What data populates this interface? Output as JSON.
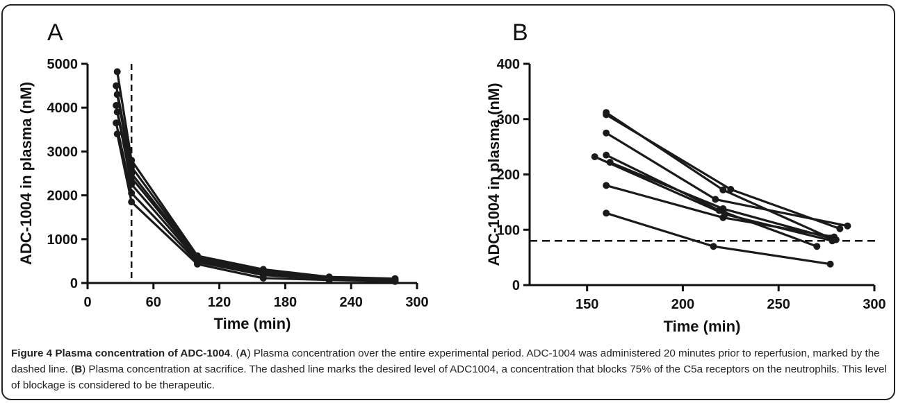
{
  "figure": {
    "caption_label": "Figure 4",
    "caption_title": "Plasma concentration of ADC-1004",
    "caption_parts": [
      {
        "t": ". (",
        "b": false
      },
      {
        "t": "A",
        "b": true
      },
      {
        "t": ") Plasma concentration over the entire experimental period. ADC-1004 was administered 20 minutes prior to reperfusion, marked by the dashed line. (",
        "b": false
      },
      {
        "t": "B",
        "b": true
      },
      {
        "t": ") Plasma concentration at sacrifice. The dashed line marks the desired level of ADC1004, a concentration that blocks 75% of the C5a receptors on the neutrophils. This level of blockage is considered to be therapeutic.",
        "b": false
      }
    ]
  },
  "chart_data": [
    {
      "panel_label": "A",
      "type": "line",
      "xlabel": "Time (min)",
      "ylabel": "ADC-1004 in plasma (nM)",
      "xlim": [
        0,
        300
      ],
      "ylim": [
        0,
        5000
      ],
      "xticks": [
        0,
        60,
        120,
        180,
        240,
        300
      ],
      "yticks": [
        0,
        1000,
        2000,
        3000,
        4000,
        5000
      ],
      "reference_line": {
        "orientation": "vertical",
        "value": 40,
        "style": "dashed"
      },
      "grid": false,
      "series": [
        {
          "x": [
            27,
            40,
            100,
            160,
            220,
            280
          ],
          "y": [
            4820,
            2800,
            620,
            310,
            140,
            100
          ]
        },
        {
          "x": [
            26,
            40,
            100,
            160,
            220,
            280
          ],
          "y": [
            4500,
            2650,
            600,
            280,
            130,
            90
          ]
        },
        {
          "x": [
            27,
            40,
            100,
            160,
            220,
            280
          ],
          "y": [
            4300,
            2500,
            580,
            260,
            120,
            80
          ]
        },
        {
          "x": [
            26,
            40,
            100,
            160,
            220,
            280
          ],
          "y": [
            4050,
            2400,
            560,
            240,
            110,
            70
          ]
        },
        {
          "x": [
            27,
            40,
            100,
            160,
            220,
            280
          ],
          "y": [
            3900,
            2250,
            520,
            220,
            100,
            60
          ]
        },
        {
          "x": [
            26,
            40,
            100,
            160,
            220,
            280
          ],
          "y": [
            3650,
            2050,
            480,
            180,
            90,
            50
          ]
        },
        {
          "x": [
            27,
            40,
            100,
            160,
            220,
            280
          ],
          "y": [
            3400,
            1850,
            430,
            110,
            70,
            35
          ]
        }
      ]
    },
    {
      "panel_label": "B",
      "type": "line",
      "xlabel": "Time (min)",
      "ylabel": "ADC-1004 in plasma (nM)",
      "xlim": [
        120,
        300
      ],
      "ylim": [
        0,
        400
      ],
      "xticks": [
        150,
        200,
        250,
        300
      ],
      "yticks": [
        0,
        100,
        200,
        300,
        400
      ],
      "reference_line": {
        "orientation": "horizontal",
        "value": 80,
        "style": "dashed"
      },
      "grid": false,
      "series": [
        {
          "x": [
            160,
            221,
            277
          ],
          "y": [
            312,
            172,
            85
          ]
        },
        {
          "x": [
            160,
            225,
            282
          ],
          "y": [
            308,
            173,
            102
          ]
        },
        {
          "x": [
            160,
            217,
            286
          ],
          "y": [
            275,
            155,
            107
          ]
        },
        {
          "x": [
            154,
            222,
            278
          ],
          "y": [
            232,
            128,
            80
          ]
        },
        {
          "x": [
            160,
            219,
            270
          ],
          "y": [
            235,
            135,
            70
          ]
        },
        {
          "x": [
            162,
            221,
            280
          ],
          "y": [
            222,
            138,
            82
          ]
        },
        {
          "x": [
            160,
            221,
            279
          ],
          "y": [
            180,
            122,
            87
          ]
        },
        {
          "x": [
            160,
            216,
            277
          ],
          "y": [
            130,
            70,
            38
          ]
        }
      ]
    }
  ]
}
